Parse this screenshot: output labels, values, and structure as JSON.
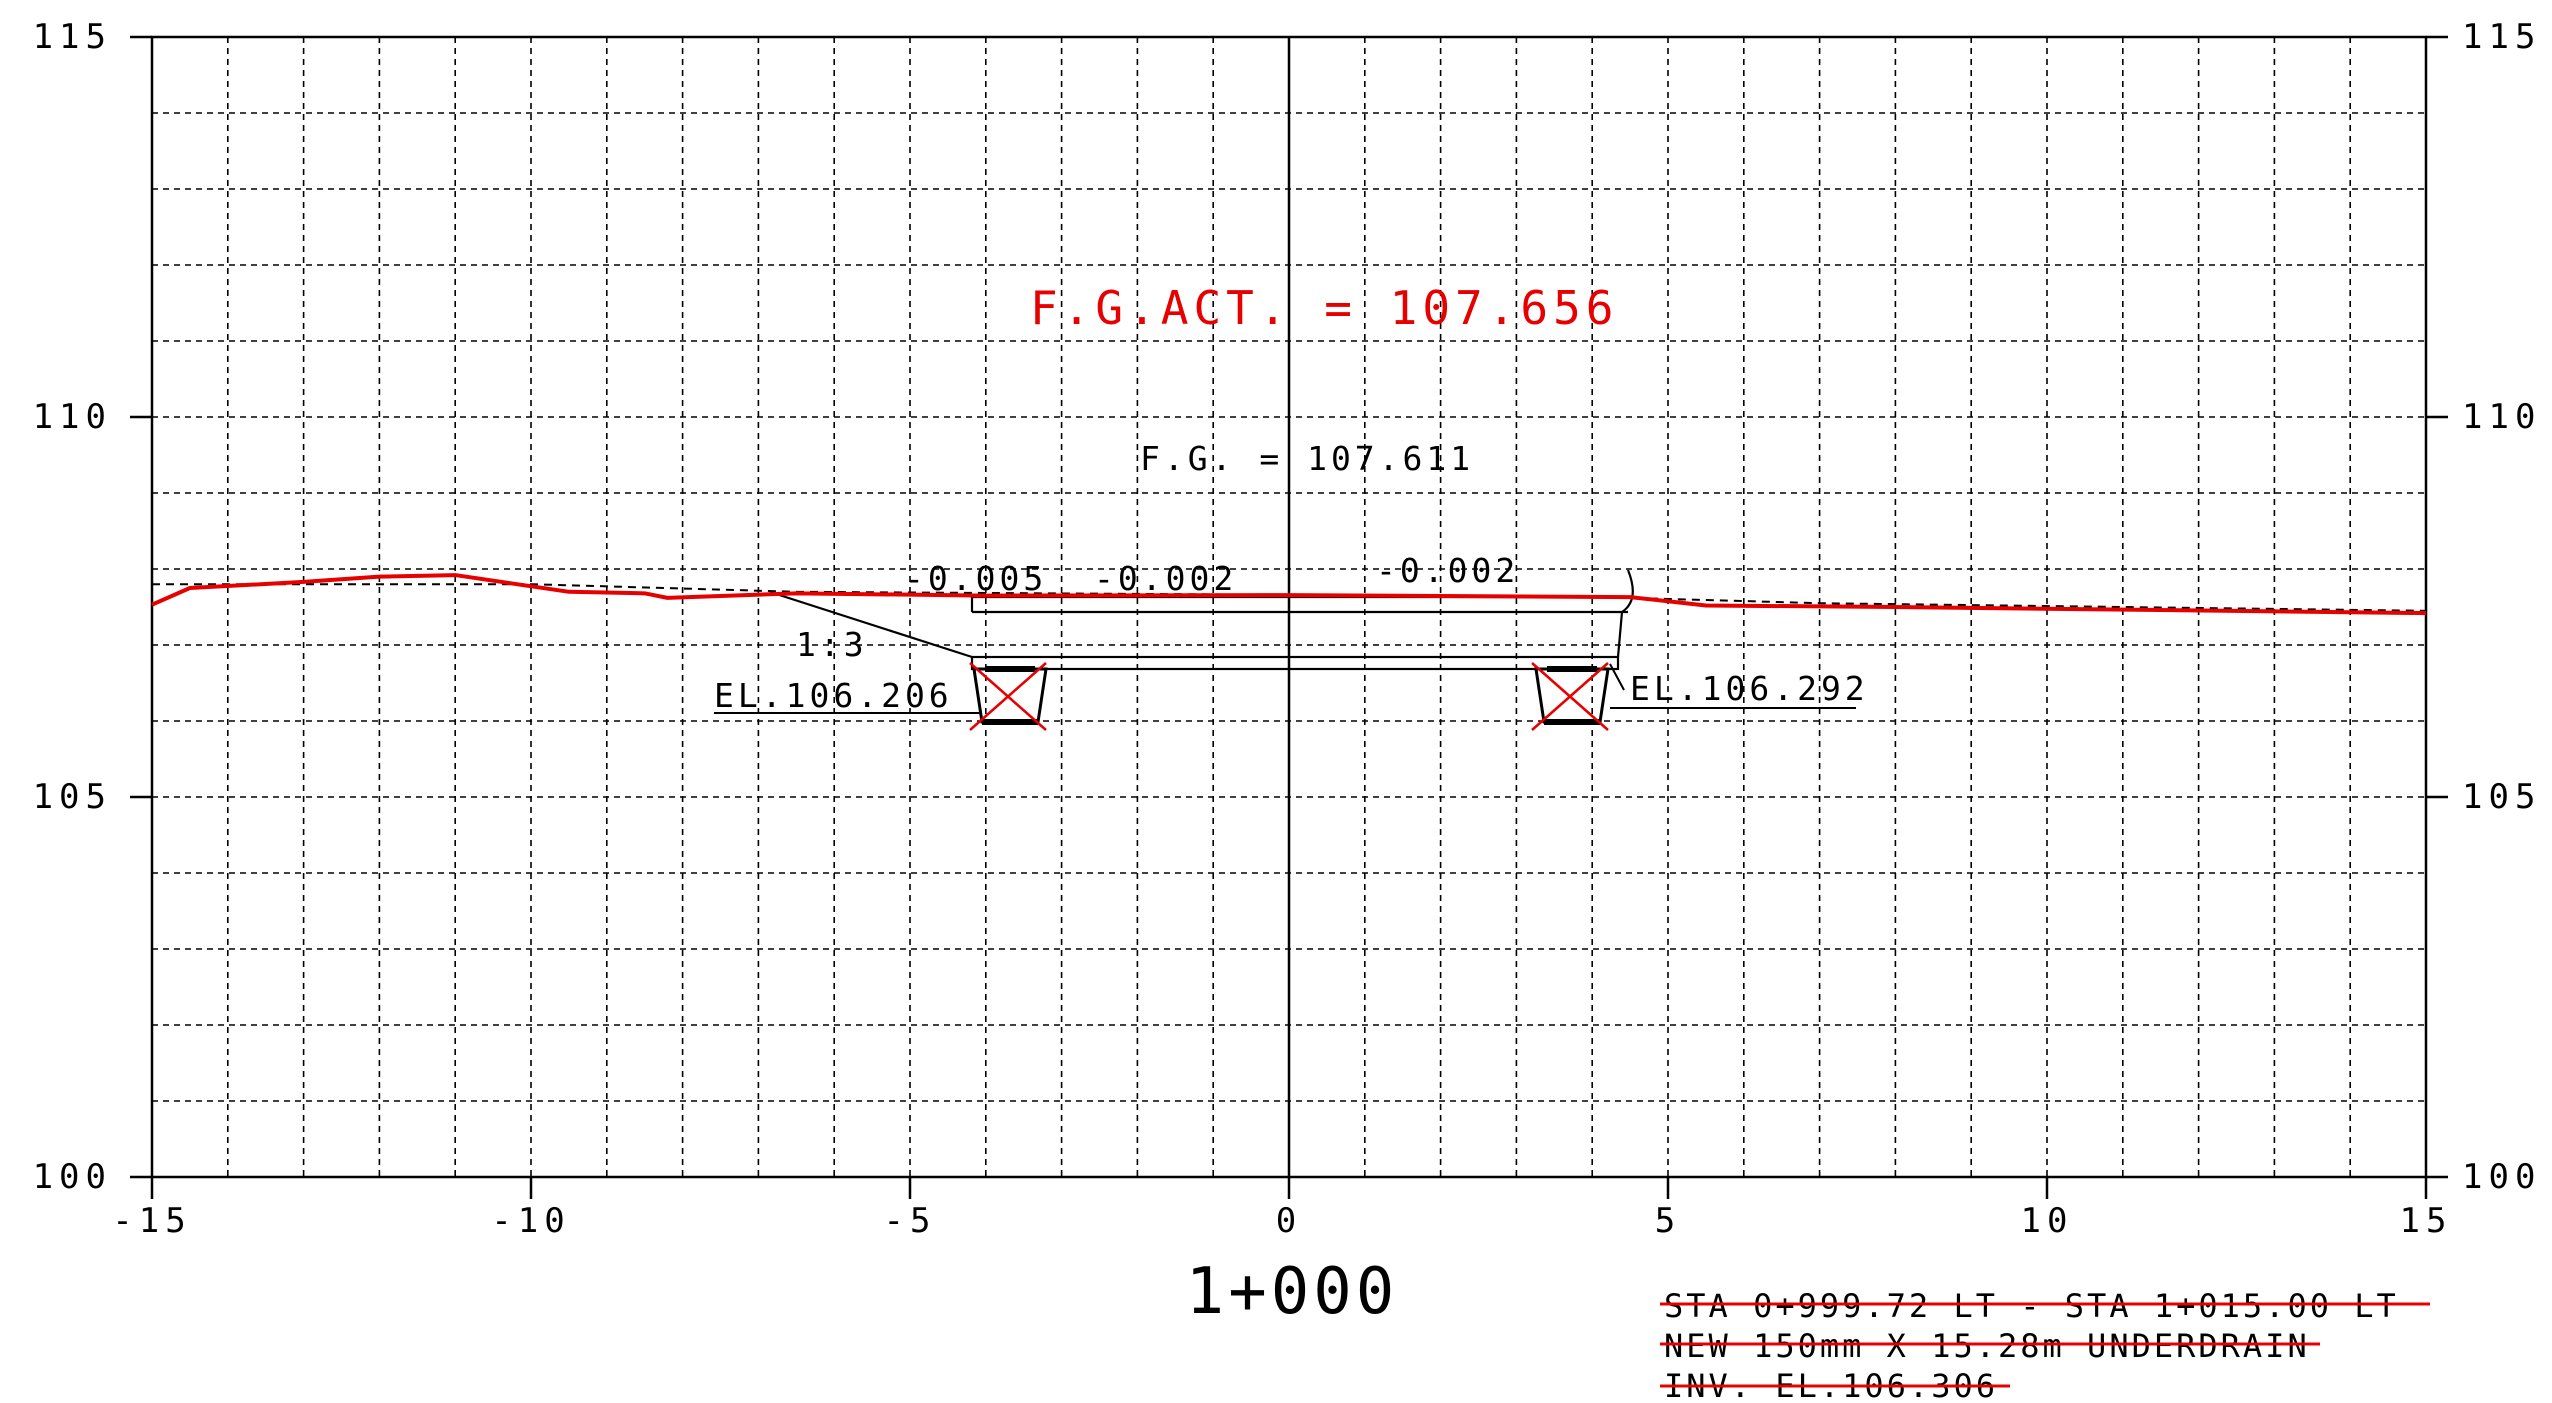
{
  "axes": {
    "x_ticks": [
      "-15",
      "-10",
      "-5",
      "0",
      "5",
      "10",
      "15"
    ],
    "y_ticks": [
      "100",
      "105",
      "110",
      "115"
    ],
    "xlim": [
      -15,
      15
    ],
    "ylim": [
      100,
      115
    ],
    "grid": true,
    "grid_spacing": 1
  },
  "station_label": "1+000",
  "annotations": {
    "fg_actual": "F.G.ACT.  =  107.656",
    "fg_design": "F.G.  =  107.611",
    "slope_1": "-0.005",
    "slope_2": "-0.002",
    "slope_3": "-0.002",
    "side_slope": "1:3",
    "el_left": "EL.106.206",
    "el_right": "EL.106.292"
  },
  "note_struck": {
    "line1": "STA 0+999.72 LT - STA 1+015.00 LT",
    "line2": "NEW 150mm X 15.28m UNDERDRAIN",
    "line3": "INV. EL.106.306"
  },
  "colors": {
    "existing_ground": "#e60000",
    "design": "#000000",
    "annotation_red": "#e60000"
  },
  "chart_data": {
    "type": "line",
    "title": "",
    "xlabel": "1+000",
    "ylabel": "",
    "xlim": [
      -15,
      15
    ],
    "ylim": [
      100,
      115
    ],
    "series": [
      {
        "color": "#e60000",
        "x": [
          -15.0,
          -14.5,
          -13.0,
          -12.0,
          -11.0,
          -9.5,
          -8.5,
          -8.2,
          -6.5,
          -4.0,
          0.0,
          4.5,
          5.5,
          8.0,
          15.0
        ],
        "y": [
          107.53,
          107.75,
          107.83,
          107.9,
          107.92,
          107.7,
          107.68,
          107.62,
          107.68,
          107.65,
          107.656,
          107.63,
          107.52,
          107.5,
          107.42
        ]
      },
      {
        "color": "#000000",
        "dashed": true,
        "x": [
          -15.0,
          -10.0,
          -6.5,
          0.0,
          4.5,
          7.0,
          15.0
        ],
        "y": [
          107.8,
          107.8,
          107.7,
          107.66,
          107.62,
          107.55,
          107.45
        ]
      }
    ]
  }
}
